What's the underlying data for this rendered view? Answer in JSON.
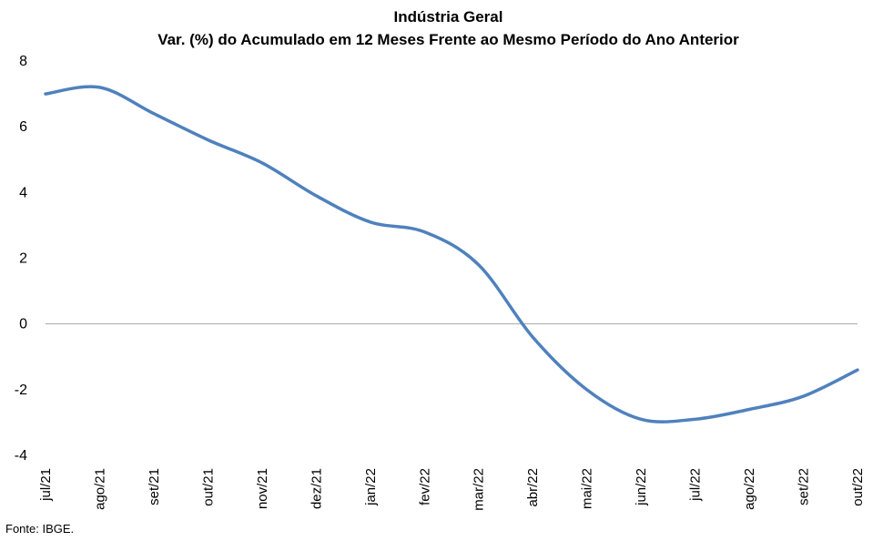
{
  "chart_data": {
    "type": "line",
    "title": "Indústria Geral",
    "subtitle": "Var. (%) do Acumulado em 12 Meses Frente ao Mesmo Período do Ano Anterior",
    "xlabel": "",
    "ylabel": "",
    "categories": [
      "jul/21",
      "ago/21",
      "set/21",
      "out/21",
      "nov/21",
      "dez/21",
      "jan/22",
      "fev/22",
      "mar/22",
      "abr/22",
      "mai/22",
      "jun/22",
      "jul/22",
      "ago/22",
      "set/22",
      "out/22"
    ],
    "series": [
      {
        "values": [
          7.0,
          7.2,
          6.4,
          5.6,
          4.9,
          3.9,
          3.1,
          2.8,
          1.8,
          -0.4,
          -2.0,
          -2.9,
          -2.9,
          -2.6,
          -2.2,
          -1.4
        ]
      }
    ],
    "ylim": [
      -4,
      8
    ],
    "yticks": [
      8,
      6,
      4,
      2,
      0,
      -2,
      -4
    ],
    "grid": false,
    "legend": "none",
    "line_color": "#4F81BD",
    "zero_line_color": "#A6A6A6"
  },
  "footer": {
    "source": "Fonte: IBGE."
  }
}
